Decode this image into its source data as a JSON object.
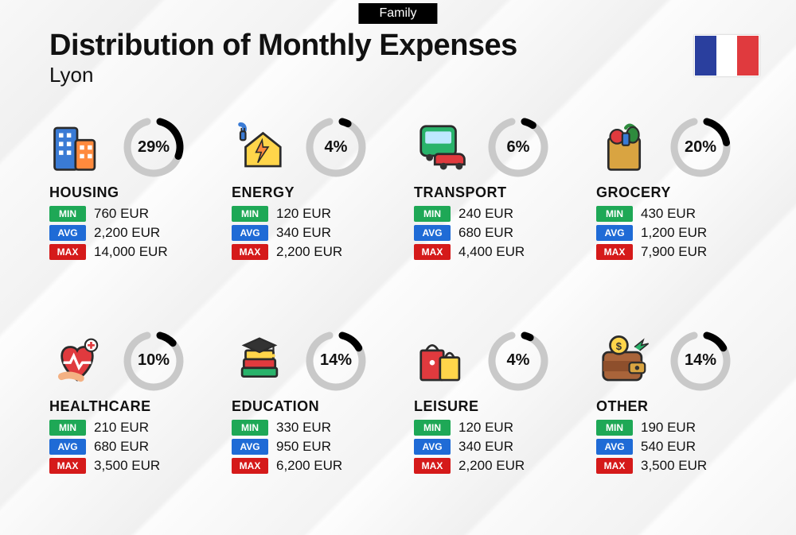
{
  "header": {
    "badge": "Family",
    "title": "Distribution of Monthly Expenses",
    "location": "Lyon"
  },
  "flag": {
    "stripes": [
      "#2a3f9e",
      "#ffffff",
      "#e03a3e"
    ]
  },
  "labels": {
    "min": "MIN",
    "avg": "AVG",
    "max": "MAX"
  },
  "label_colors": {
    "min": "#1ea856",
    "avg": "#1f6bd6",
    "max": "#d51a1a"
  },
  "donut": {
    "radius": 33,
    "stroke": 9,
    "track_color": "#c9c9c9",
    "arc_color": "#000000",
    "gap_angle_deg": 28
  },
  "typography": {
    "title_fontsize": 38,
    "title_weight": 800,
    "subtitle_fontsize": 26,
    "category_fontsize": 18,
    "category_weight": 800,
    "pct_fontsize": 20,
    "pct_weight": 800,
    "value_fontsize": 17
  },
  "categories": [
    {
      "key": "housing",
      "name": "HOUSING",
      "percent": 29,
      "percent_label": "29%",
      "min": "760 EUR",
      "avg": "2,200 EUR",
      "max": "14,000 EUR",
      "icon": "buildings"
    },
    {
      "key": "energy",
      "name": "ENERGY",
      "percent": 4,
      "percent_label": "4%",
      "min": "120 EUR",
      "avg": "340 EUR",
      "max": "2,200 EUR",
      "icon": "house-energy"
    },
    {
      "key": "transport",
      "name": "TRANSPORT",
      "percent": 6,
      "percent_label": "6%",
      "min": "240 EUR",
      "avg": "680 EUR",
      "max": "4,400 EUR",
      "icon": "bus-car"
    },
    {
      "key": "grocery",
      "name": "GROCERY",
      "percent": 20,
      "percent_label": "20%",
      "min": "430 EUR",
      "avg": "1,200 EUR",
      "max": "7,900 EUR",
      "icon": "grocery-bag"
    },
    {
      "key": "healthcare",
      "name": "HEALTHCARE",
      "percent": 10,
      "percent_label": "10%",
      "min": "210 EUR",
      "avg": "680 EUR",
      "max": "3,500 EUR",
      "icon": "heart-pulse"
    },
    {
      "key": "education",
      "name": "EDUCATION",
      "percent": 14,
      "percent_label": "14%",
      "min": "330 EUR",
      "avg": "950 EUR",
      "max": "6,200 EUR",
      "icon": "books-cap"
    },
    {
      "key": "leisure",
      "name": "LEISURE",
      "percent": 4,
      "percent_label": "4%",
      "min": "120 EUR",
      "avg": "340 EUR",
      "max": "2,200 EUR",
      "icon": "shopping-bags"
    },
    {
      "key": "other",
      "name": "OTHER",
      "percent": 14,
      "percent_label": "14%",
      "min": "190 EUR",
      "avg": "540 EUR",
      "max": "3,500 EUR",
      "icon": "wallet"
    }
  ]
}
